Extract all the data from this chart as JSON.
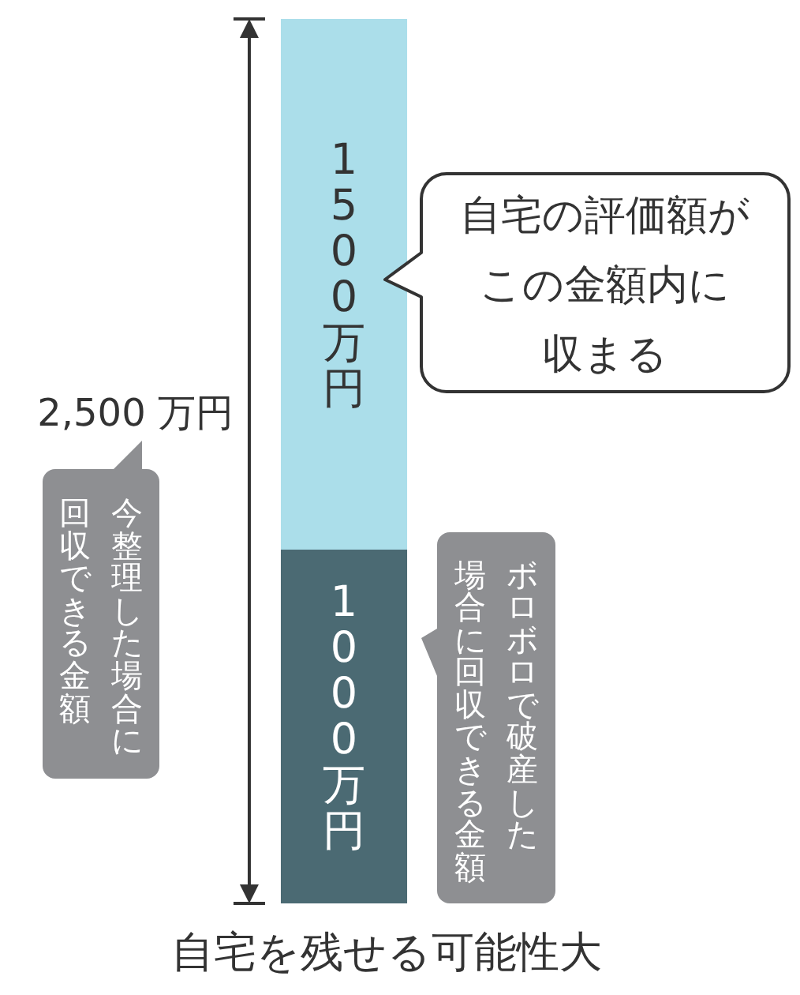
{
  "chart_data": {
    "type": "bar",
    "stacked": true,
    "categories": [
      null
    ],
    "series": [
      {
        "color": "#4b6a73",
        "values": [
          1000
        ],
        "value_labels": [
          "1000万円"
        ]
      },
      {
        "color": "#abdeea",
        "values": [
          1500
        ],
        "value_labels": [
          "1500万円"
        ]
      }
    ],
    "totals": [
      "2,500 万円"
    ],
    "xlabel": "自宅を残せる可能性大",
    "annotations": [
      "自宅の評価額がこの金額内に収まる",
      "今整理した場合に回収できる金額",
      "ボロボロで破産した場合に回収できる金額"
    ]
  }
}
